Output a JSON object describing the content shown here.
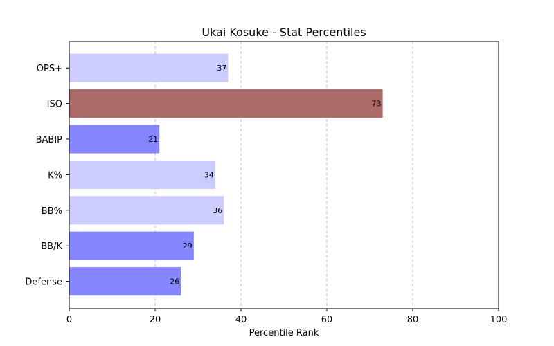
{
  "chart_data": {
    "type": "bar",
    "orientation": "horizontal",
    "title": "Ukai Kosuke - Stat Percentiles",
    "xlabel": "Percentile Rank",
    "ylabel": "",
    "xlim": [
      0,
      100
    ],
    "xticks": [
      0,
      20,
      40,
      60,
      80,
      100
    ],
    "grid": "vertical dashed",
    "categories": [
      "OPS+",
      "ISO",
      "BABIP",
      "K%",
      "BB%",
      "BB/K",
      "Defense"
    ],
    "values": [
      37,
      73,
      21,
      34,
      36,
      29,
      26
    ],
    "bar_colors": [
      "#ccccff",
      "#ac6b69",
      "#8585ff",
      "#ccccff",
      "#ccccff",
      "#8585ff",
      "#8585ff"
    ]
  }
}
